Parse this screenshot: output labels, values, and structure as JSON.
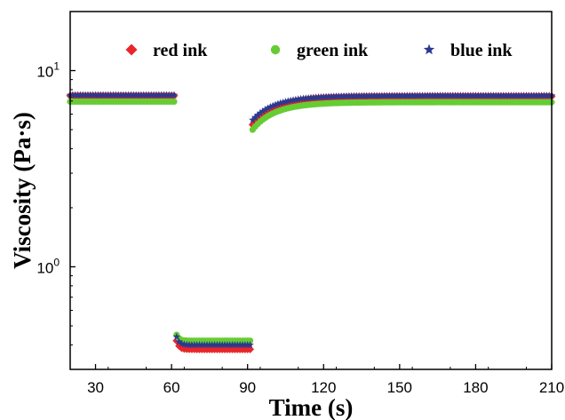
{
  "chart_data": {
    "type": "scatter",
    "xlabel": "Time (s)",
    "ylabel": "Viscosity (Pa·s)",
    "xlim": [
      20,
      210
    ],
    "ylim": [
      0.3,
      20
    ],
    "yscale": "log",
    "xticks": [
      30,
      60,
      90,
      120,
      150,
      180,
      210
    ],
    "yticks": [
      {
        "value": 1,
        "base": "10",
        "exp": "0"
      },
      {
        "value": 10,
        "base": "10",
        "exp": "1"
      }
    ],
    "legend_position": "top",
    "grid": false,
    "series": [
      {
        "name": "red ink",
        "color": "#e8262b",
        "marker": "diamond",
        "segments": [
          {
            "x_start": 20,
            "x_end": 61,
            "y_start": 7.45,
            "y_end": 7.45,
            "tau": 0
          },
          {
            "x_start": 62,
            "x_end": 91,
            "y_start": 0.42,
            "y_end": 0.38,
            "tau": 1
          },
          {
            "x_start": 92,
            "x_end": 210,
            "y_start": 5.3,
            "y_end": 7.4,
            "tau": 10
          }
        ]
      },
      {
        "name": "green ink",
        "color": "#66cc33",
        "marker": "circle",
        "segments": [
          {
            "x_start": 20,
            "x_end": 61,
            "y_start": 6.95,
            "y_end": 6.95,
            "tau": 0
          },
          {
            "x_start": 62,
            "x_end": 91,
            "y_start": 0.45,
            "y_end": 0.42,
            "tau": 1
          },
          {
            "x_start": 92,
            "x_end": 210,
            "y_start": 5.0,
            "y_end": 6.9,
            "tau": 10
          }
        ]
      },
      {
        "name": "blue ink",
        "color": "#2b3a8e",
        "marker": "star",
        "segments": [
          {
            "x_start": 20,
            "x_end": 61,
            "y_start": 7.5,
            "y_end": 7.5,
            "tau": 0
          },
          {
            "x_start": 62,
            "x_end": 91,
            "y_start": 0.44,
            "y_end": 0.4,
            "tau": 1
          },
          {
            "x_start": 92,
            "x_end": 210,
            "y_start": 5.6,
            "y_end": 7.45,
            "tau": 10
          }
        ]
      }
    ]
  }
}
